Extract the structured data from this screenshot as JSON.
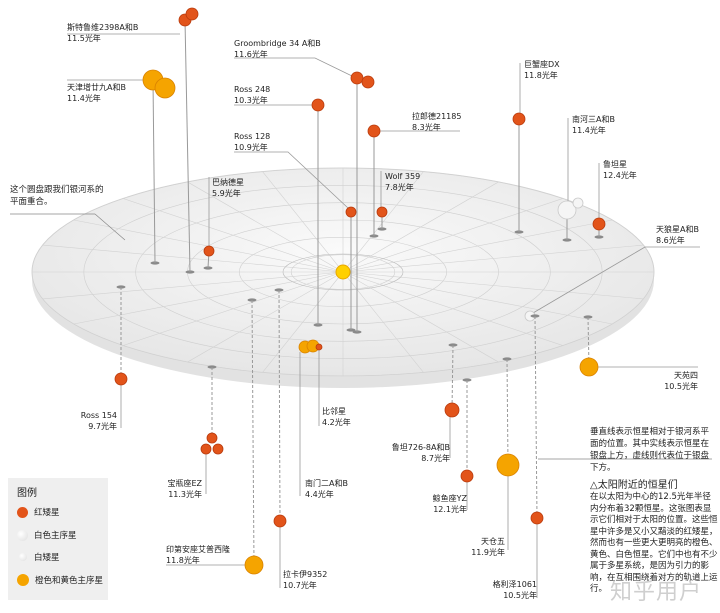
{
  "colors": {
    "red_dwarf": "#e2541a",
    "white_main": "#f4f4f4",
    "white_dwarf": "#f7f7f7",
    "orange_yellow": "#f5a400",
    "sun": "#ffd000"
  },
  "disc_note": "这个圆盘跟我们银河系的平面重合。",
  "line_note": "垂直线表示恒星相对于银河系平面的位置。其中实线表示恒星在银盘上方，虚线则代表位于银盘下方。",
  "info": {
    "title": "△太阳附近的恒星们",
    "body": "在以太阳为中心的12.5光年半径内分布着32颗恒星。这张图表显示它们相对于太阳的位置。这些恒星中许多是又小又黯淡的红矮星，然而也有一些更大更明亮的橙色、黄色、白色恒星。它们中也有不少属于多星系统，是因为引力的影响，在互相围绕着对方的轨道上运行。"
  },
  "legend": {
    "title": "图例",
    "items": [
      {
        "label": "红矮星",
        "type": "red_dwarf"
      },
      {
        "label": "白色主序星",
        "type": "white_main"
      },
      {
        "label": "白矮星",
        "type": "white_dwarf"
      },
      {
        "label": "橙色和黄色主序星",
        "type": "orange_yellow"
      }
    ]
  },
  "stars": [
    {
      "name": "斯特鲁维2398A和B",
      "distance": "11.5光年",
      "type": "red_dwarf",
      "above_plane": true
    },
    {
      "name": "天津增廿九A和B",
      "distance": "11.4光年",
      "type": "orange_yellow",
      "above_plane": true
    },
    {
      "name": "Groombridge 34 A和B",
      "distance": "11.6光年",
      "type": "red_dwarf",
      "above_plane": true
    },
    {
      "name": "Ross 248",
      "distance": "10.3光年",
      "type": "red_dwarf",
      "above_plane": true
    },
    {
      "name": "Ross 128",
      "distance": "10.9光年",
      "type": "red_dwarf",
      "above_plane": true
    },
    {
      "name": "巴纳德星",
      "distance": "5.9光年",
      "type": "red_dwarf",
      "above_plane": true
    },
    {
      "name": "拉郎德21185",
      "distance": "8.3光年",
      "type": "red_dwarf",
      "above_plane": true
    },
    {
      "name": "Wolf 359",
      "distance": "7.8光年",
      "type": "red_dwarf",
      "above_plane": true
    },
    {
      "name": "巨蟹座DX",
      "distance": "11.8光年",
      "type": "red_dwarf",
      "above_plane": true
    },
    {
      "name": "南河三A和B",
      "distance": "11.4光年",
      "type": "white_main",
      "above_plane": true
    },
    {
      "name": "鲁坦星",
      "distance": "12.4光年",
      "type": "red_dwarf",
      "above_plane": true
    },
    {
      "name": "天狼星A和B",
      "distance": "8.6光年",
      "type": "white_main",
      "above_plane": true
    },
    {
      "name": "天苑四",
      "distance": "10.5光年",
      "type": "orange_yellow",
      "above_plane": false
    },
    {
      "name": "Ross 154",
      "distance": "9.7光年",
      "type": "red_dwarf",
      "above_plane": false
    },
    {
      "name": "宝瓶座EZ",
      "distance": "11.3光年",
      "type": "red_dwarf",
      "above_plane": false
    },
    {
      "name": "印第安座艾普西隆",
      "distance": "11.8光年",
      "type": "orange_yellow",
      "above_plane": false
    },
    {
      "name": "拉卡伊9352",
      "distance": "10.7光年",
      "type": "red_dwarf",
      "above_plane": false
    },
    {
      "name": "南门二A和B",
      "distance": "4.4光年",
      "type": "orange_yellow",
      "above_plane": true
    },
    {
      "name": "比邻星",
      "distance": "4.2光年",
      "type": "red_dwarf",
      "above_plane": true
    },
    {
      "name": "鲁坦726-8A和B",
      "distance": "8.7光年",
      "type": "red_dwarf",
      "above_plane": false
    },
    {
      "name": "鲸鱼座YZ",
      "distance": "12.1光年",
      "type": "red_dwarf",
      "above_plane": false
    },
    {
      "name": "天仓五",
      "distance": "11.9光年",
      "type": "orange_yellow",
      "above_plane": false
    },
    {
      "name": "格利泽1061",
      "distance": "10.5光年",
      "type": "red_dwarf",
      "above_plane": false
    }
  ],
  "watermark": "知乎用户"
}
